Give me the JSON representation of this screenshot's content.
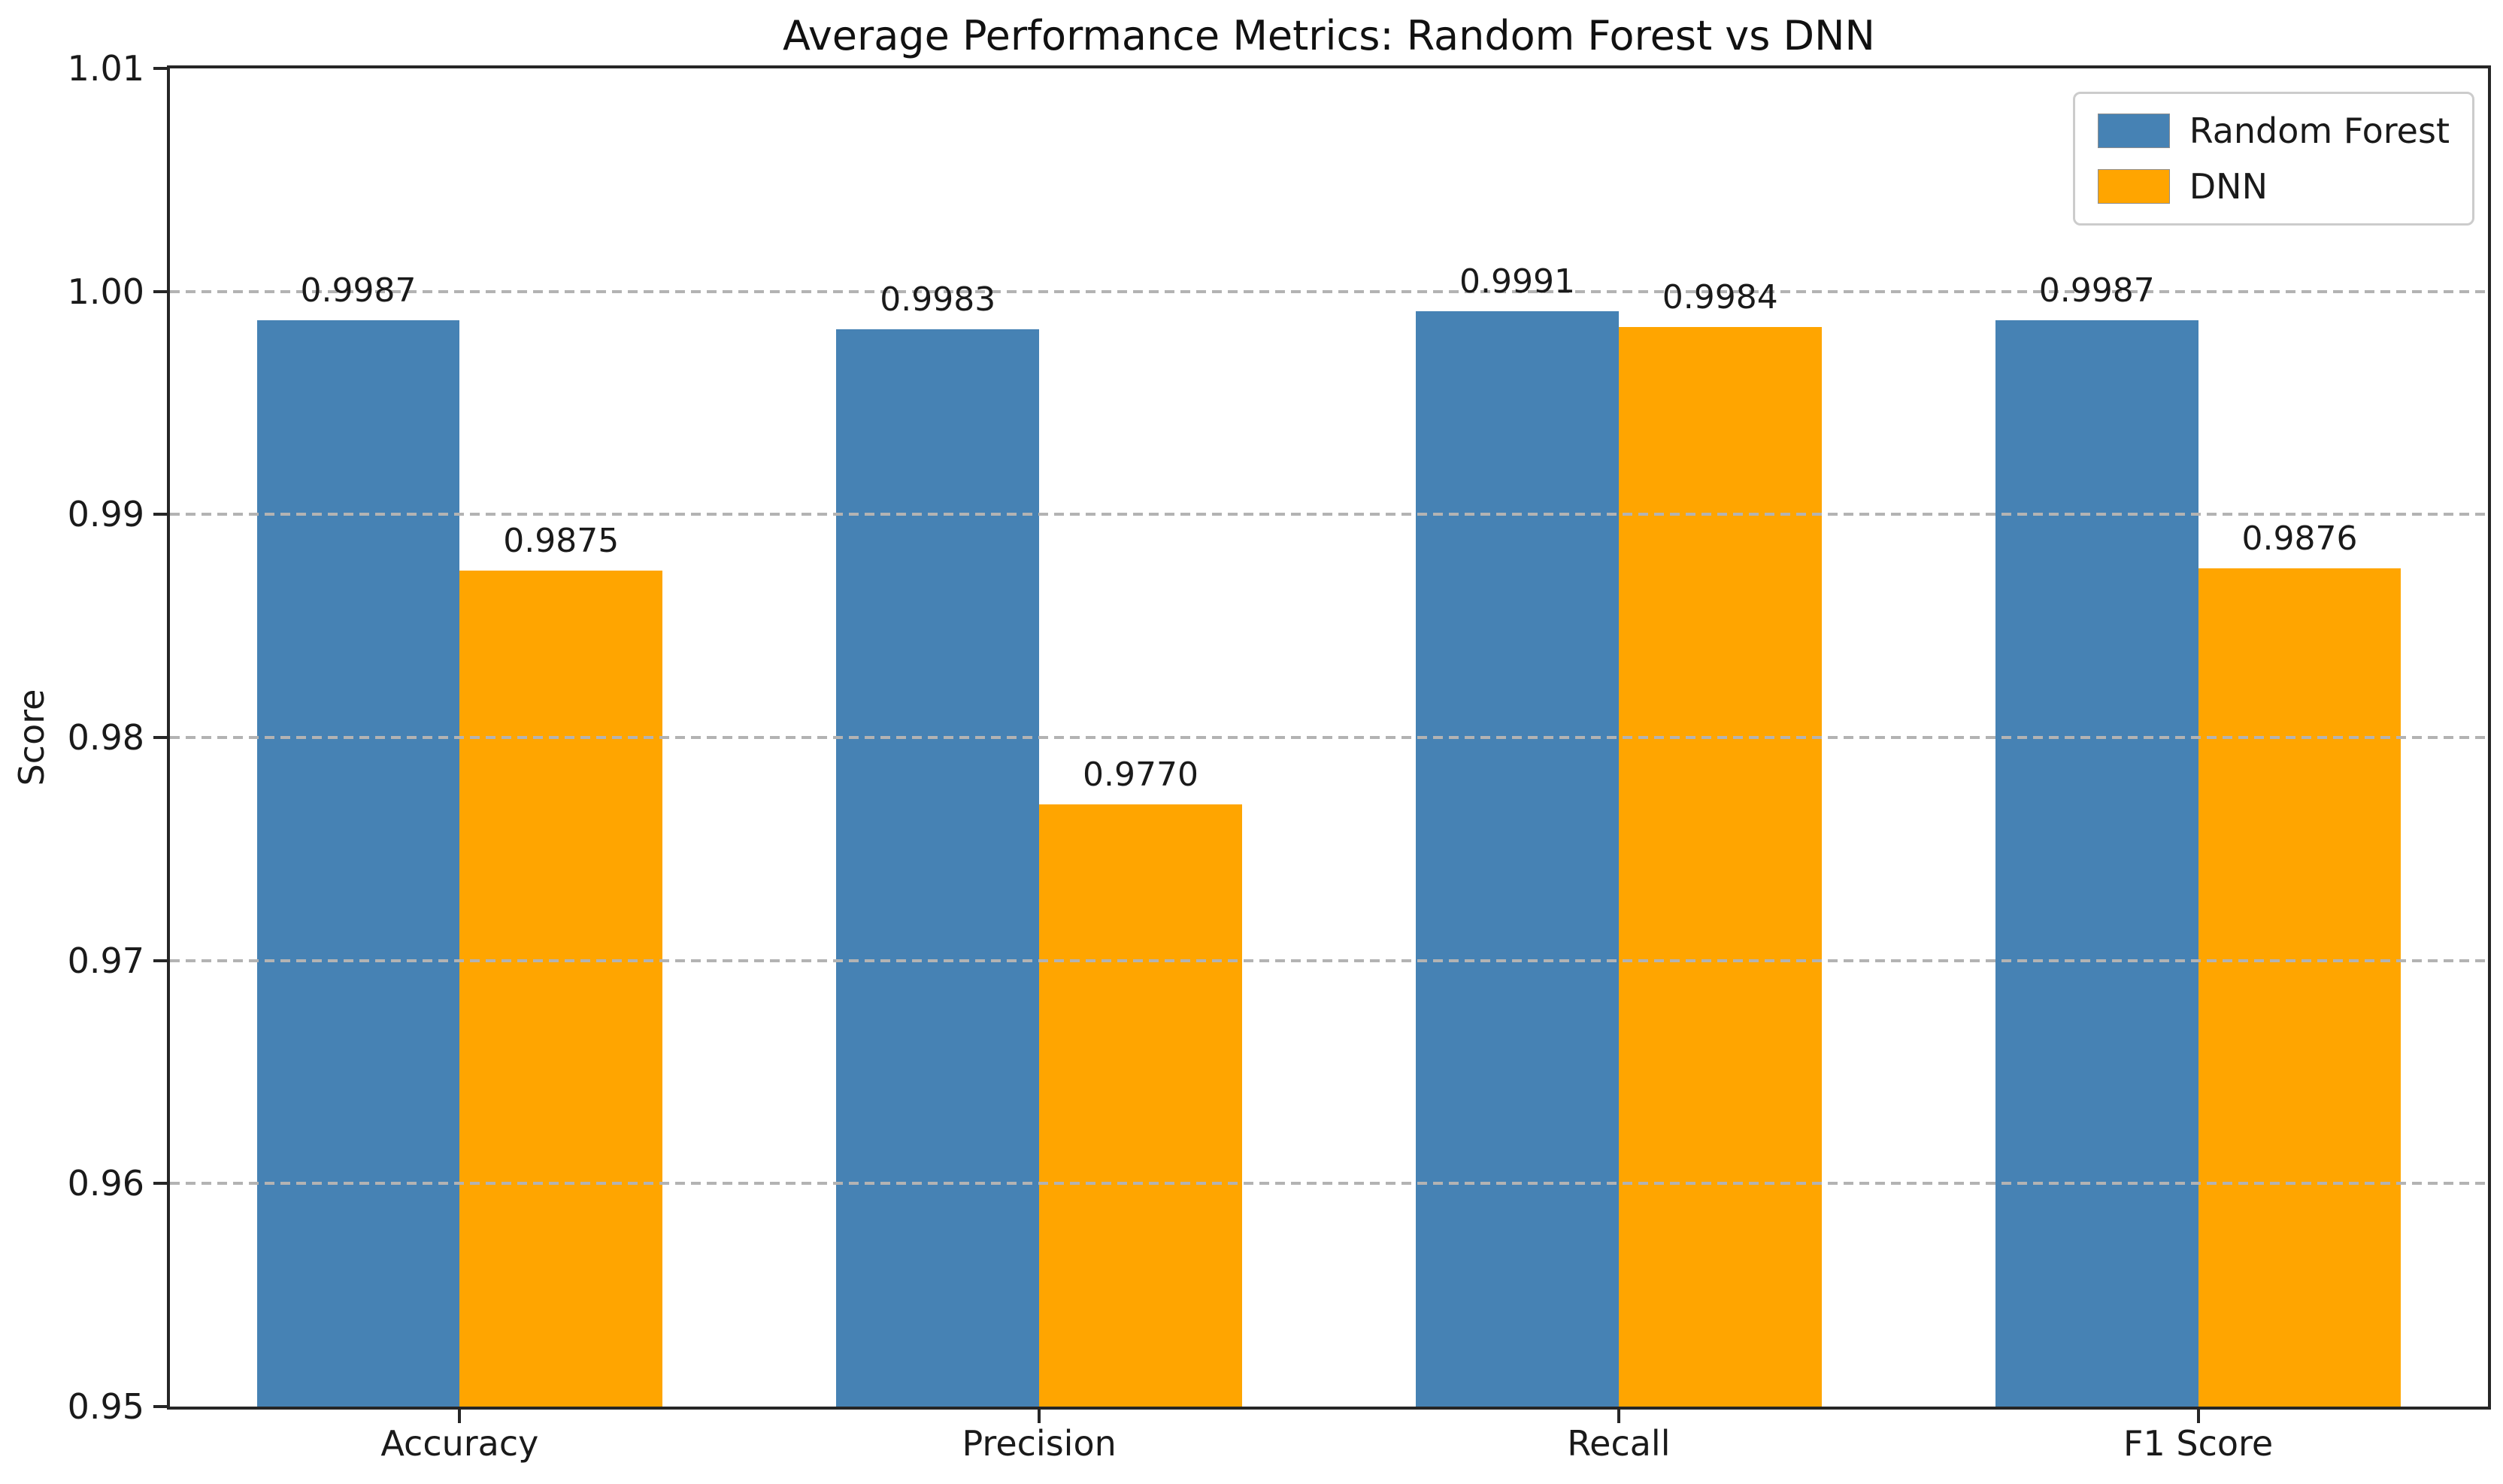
{
  "chart_data": {
    "type": "bar",
    "title": "Average Performance Metrics: Random Forest vs DNN",
    "xlabel": "",
    "ylabel": "Score",
    "categories": [
      "Accuracy",
      "Precision",
      "Recall",
      "F1 Score"
    ],
    "series": [
      {
        "name": "Random Forest",
        "color": "#4682B4",
        "values": [
          0.9987,
          0.9983,
          0.9991,
          0.9987
        ]
      },
      {
        "name": "DNN",
        "color": "#FFA500",
        "values": [
          0.9875,
          0.977,
          0.9984,
          0.9876
        ]
      }
    ],
    "bar_value_labels": [
      [
        "0.9987",
        "0.9983",
        "0.9991",
        "0.9987"
      ],
      [
        "0.9875",
        "0.9770",
        "0.9984",
        "0.9876"
      ]
    ],
    "value_label_decimals": 4,
    "ylim": [
      0.95,
      1.01
    ],
    "xlim": [
      -0.5,
      3.5
    ],
    "bar_width": 0.35,
    "yticks": [
      {
        "value": 1.01,
        "label": "1.01"
      },
      {
        "value": 1.0,
        "label": "1.00"
      },
      {
        "value": 0.99,
        "label": "0.99"
      },
      {
        "value": 0.98,
        "label": "0.98"
      },
      {
        "value": 0.97,
        "label": "0.97"
      },
      {
        "value": 0.96,
        "label": "0.96"
      },
      {
        "value": 0.95,
        "label": "0.95"
      }
    ],
    "grid": {
      "axis": "y",
      "style": "dashed",
      "color": "#b3b3b3",
      "on": true
    },
    "legend": {
      "position": "upper right",
      "entries": [
        "Random Forest",
        "DNN"
      ]
    }
  },
  "colors": {
    "spine": "#262626",
    "text": "#1a1a1a",
    "legend_border": "#cccccc",
    "background": "#ffffff"
  }
}
